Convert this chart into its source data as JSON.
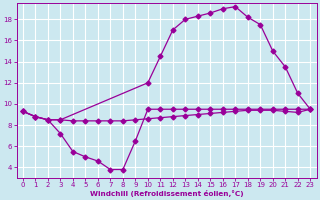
{
  "background_color": "#cce8f0",
  "grid_color": "#ffffff",
  "line_color": "#990099",
  "xlabel": "Windchill (Refroidissement éolien,°C)",
  "xlim": [
    -0.5,
    23.5
  ],
  "ylim": [
    3.0,
    19.5
  ],
  "yticks": [
    4,
    6,
    8,
    10,
    12,
    14,
    16,
    18
  ],
  "xticks": [
    0,
    1,
    2,
    3,
    4,
    5,
    6,
    7,
    8,
    9,
    10,
    11,
    12,
    13,
    14,
    15,
    16,
    17,
    18,
    19,
    20,
    21,
    22,
    23
  ],
  "curve_flat_x": [
    0,
    1,
    2,
    3,
    4,
    5,
    6,
    7,
    8,
    9,
    10,
    11,
    12,
    13,
    14,
    15,
    16,
    17,
    18,
    19,
    20,
    21,
    22,
    23
  ],
  "curve_flat_y": [
    9.3,
    8.8,
    8.5,
    8.5,
    8.4,
    8.4,
    8.4,
    8.4,
    8.4,
    8.5,
    8.6,
    8.7,
    8.8,
    8.9,
    9.0,
    9.1,
    9.2,
    9.3,
    9.4,
    9.4,
    9.4,
    9.3,
    9.2,
    9.5
  ],
  "curve_high_x": [
    0,
    1,
    2,
    3,
    10,
    11,
    12,
    13,
    14,
    15,
    16,
    17,
    18,
    19,
    20,
    21,
    22,
    23
  ],
  "curve_high_y": [
    9.3,
    8.8,
    8.5,
    8.5,
    12.0,
    14.5,
    17.0,
    18.0,
    18.3,
    18.6,
    19.0,
    19.2,
    18.2,
    17.5,
    15.0,
    13.5,
    11.0,
    9.5
  ],
  "curve_low_x": [
    0,
    1,
    2,
    3,
    4,
    5,
    6,
    7,
    8,
    9,
    10,
    11,
    12,
    13,
    14,
    15,
    16,
    17,
    18,
    19,
    20,
    21,
    22,
    23
  ],
  "curve_low_y": [
    9.3,
    8.8,
    8.5,
    7.2,
    5.5,
    5.0,
    4.6,
    3.8,
    3.8,
    6.5,
    9.5,
    9.5,
    9.5,
    9.5,
    9.5,
    9.5,
    9.5,
    9.5,
    9.5,
    9.5,
    9.5,
    9.5,
    9.5,
    9.5
  ]
}
